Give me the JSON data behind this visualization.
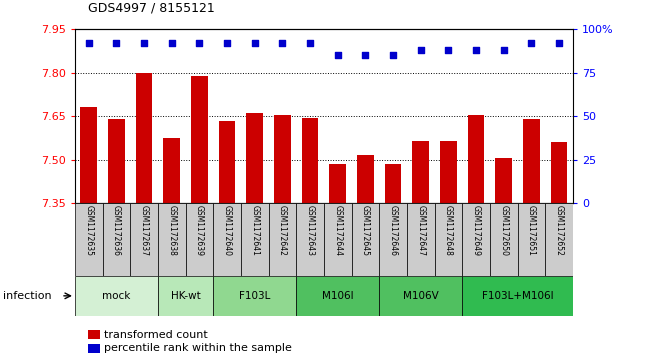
{
  "title": "GDS4997 / 8155121",
  "samples": [
    "GSM1172635",
    "GSM1172636",
    "GSM1172637",
    "GSM1172638",
    "GSM1172639",
    "GSM1172640",
    "GSM1172641",
    "GSM1172642",
    "GSM1172643",
    "GSM1172644",
    "GSM1172645",
    "GSM1172646",
    "GSM1172647",
    "GSM1172648",
    "GSM1172649",
    "GSM1172650",
    "GSM1172651",
    "GSM1172652"
  ],
  "red_values": [
    7.68,
    7.64,
    7.8,
    7.575,
    7.79,
    7.635,
    7.66,
    7.655,
    7.645,
    7.485,
    7.515,
    7.485,
    7.565,
    7.565,
    7.655,
    7.505,
    7.64,
    7.56
  ],
  "blue_values": [
    92,
    92,
    92,
    92,
    92,
    92,
    92,
    92,
    92,
    85,
    85,
    85,
    88,
    88,
    88,
    88,
    92,
    92
  ],
  "ylim_left": [
    7.35,
    7.95
  ],
  "ylim_right": [
    0,
    100
  ],
  "yticks_left": [
    7.35,
    7.5,
    7.65,
    7.8,
    7.95
  ],
  "yticks_right": [
    0,
    25,
    50,
    75,
    100
  ],
  "ytick_labels_right": [
    "0",
    "25",
    "50",
    "75",
    "100%"
  ],
  "grid_values": [
    7.5,
    7.65,
    7.8,
    7.95
  ],
  "groups": [
    {
      "label": "mock",
      "start": 0,
      "end": 2,
      "color": "#d4f0d4"
    },
    {
      "label": "HK-wt",
      "start": 3,
      "end": 4,
      "color": "#b8e8b8"
    },
    {
      "label": "F103L",
      "start": 5,
      "end": 7,
      "color": "#90d890"
    },
    {
      "label": "M106I",
      "start": 8,
      "end": 10,
      "color": "#50c060"
    },
    {
      "label": "M106V",
      "start": 11,
      "end": 13,
      "color": "#50c060"
    },
    {
      "label": "F103L+M106I",
      "start": 14,
      "end": 17,
      "color": "#30bb50"
    }
  ],
  "infection_label": "infection",
  "bar_color_red": "#cc0000",
  "bar_color_blue": "#0000cc",
  "bar_width": 0.6,
  "legend_red": "transformed count",
  "legend_blue": "percentile rank within the sample",
  "sample_box_color": "#cccccc",
  "plot_bg": "#ffffff"
}
